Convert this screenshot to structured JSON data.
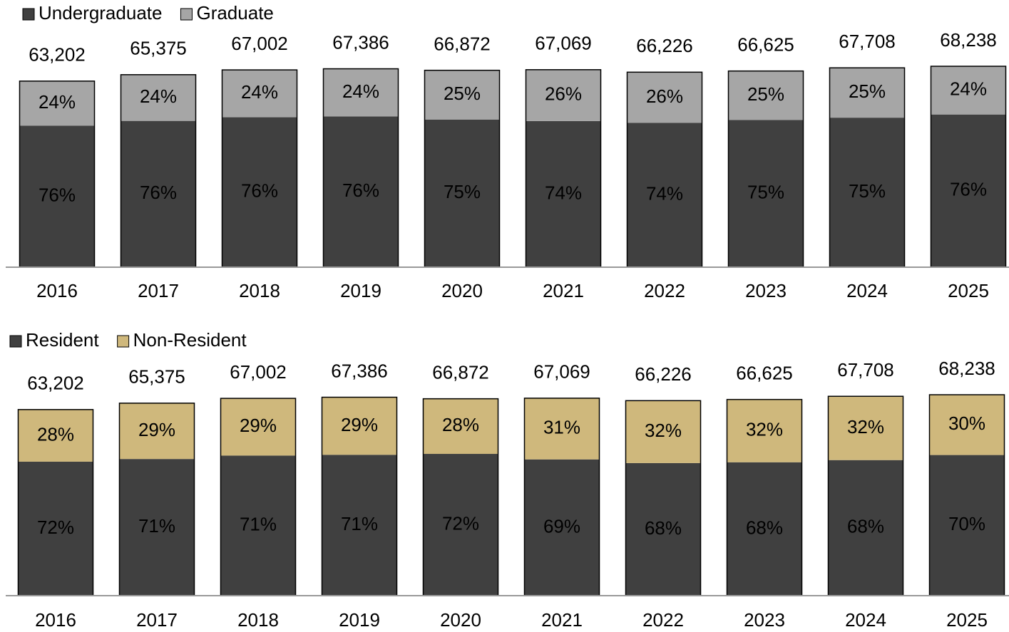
{
  "chart_data": [
    {
      "type": "bar",
      "stacked": true,
      "categories": [
        "2016",
        "2017",
        "2018",
        "2019",
        "2020",
        "2021",
        "2022",
        "2023",
        "2024",
        "2025"
      ],
      "totals": {
        "values": [
          63202,
          65375,
          67002,
          67386,
          66872,
          67069,
          66226,
          66625,
          67708,
          68238
        ],
        "value_labels": [
          "63,202",
          "65,375",
          "67,002",
          "67,386",
          "66,872",
          "67,069",
          "66,226",
          "66,625",
          "67,708",
          "68,238"
        ]
      },
      "series": [
        {
          "name": "Undergraduate",
          "color": "#404040",
          "label_color": "#ffffff",
          "values": [
            76,
            76,
            76,
            76,
            75,
            74,
            74,
            75,
            75,
            76
          ],
          "value_labels": [
            "76%",
            "76%",
            "76%",
            "76%",
            "75%",
            "74%",
            "74%",
            "75%",
            "75%",
            "76%"
          ]
        },
        {
          "name": "Graduate",
          "color": "#a6a6a6",
          "label_color": "#000000",
          "values": [
            24,
            24,
            24,
            24,
            25,
            26,
            26,
            25,
            25,
            24
          ],
          "value_labels": [
            "24%",
            "24%",
            "24%",
            "24%",
            "25%",
            "26%",
            "26%",
            "25%",
            "25%",
            "24%"
          ]
        }
      ]
    },
    {
      "type": "bar",
      "stacked": true,
      "categories": [
        "2016",
        "2017",
        "2018",
        "2019",
        "2020",
        "2021",
        "2022",
        "2023",
        "2024",
        "2025"
      ],
      "totals": {
        "values": [
          63202,
          65375,
          67002,
          67386,
          66872,
          67069,
          66226,
          66625,
          67708,
          68238
        ],
        "value_labels": [
          "63,202",
          "65,375",
          "67,002",
          "67,386",
          "66,872",
          "67,069",
          "66,226",
          "66,625",
          "67,708",
          "68,238"
        ]
      },
      "series": [
        {
          "name": "Resident",
          "color": "#404040",
          "label_color": "#ffffff",
          "values": [
            72,
            71,
            71,
            71,
            72,
            69,
            68,
            68,
            68,
            70
          ],
          "value_labels": [
            "72%",
            "71%",
            "71%",
            "71%",
            "72%",
            "69%",
            "68%",
            "68%",
            "68%",
            "70%"
          ]
        },
        {
          "name": "Non-Resident",
          "color": "#cfb87c",
          "label_color": "#000000",
          "values": [
            28,
            29,
            29,
            29,
            28,
            31,
            32,
            32,
            32,
            30
          ],
          "value_labels": [
            "28%",
            "29%",
            "29%",
            "29%",
            "28%",
            "31%",
            "32%",
            "32%",
            "32%",
            "30%"
          ]
        }
      ]
    }
  ]
}
